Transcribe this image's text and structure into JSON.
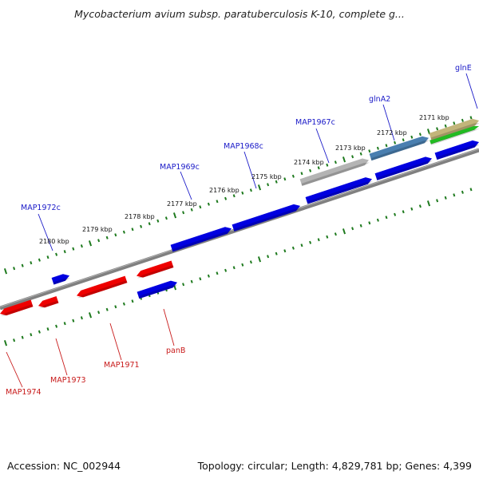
{
  "title": "Mycobacterium avium subsp. paratuberculosis K-10, complete g...",
  "footer": {
    "accession": "Accession: NC_002944",
    "summary": "Topology: circular; Length: 4,829,781 bp; Genes: 4,399"
  },
  "colors": {
    "forward_gene": "#0000e0",
    "reverse_gene": "#ee0000",
    "backbone": "#808080",
    "tick": "#1e7a1e",
    "forward_label": "#1a1ac8",
    "reverse_label": "#c81a1a",
    "rrna_gray": "#b4b4b4",
    "steel_blue": "#4a7fb0",
    "olive": "#c2b57a",
    "green": "#22bb22"
  },
  "kbp_labels": [
    "2180 kbp",
    "2179 kbp",
    "2178 kbp",
    "2177 kbp",
    "2176 kbp",
    "2175 kbp",
    "2174 kbp",
    "2173 kbp",
    "2172 kbp",
    "2171 kbp"
  ],
  "gene_labels_top": [
    "MAP1972c",
    "MAP1969c",
    "MAP1968c",
    "MAP1967c",
    "glnA2",
    "glnE"
  ],
  "gene_labels_bottom": [
    "MAP1974",
    "MAP1973",
    "MAP1971",
    "panB"
  ]
}
